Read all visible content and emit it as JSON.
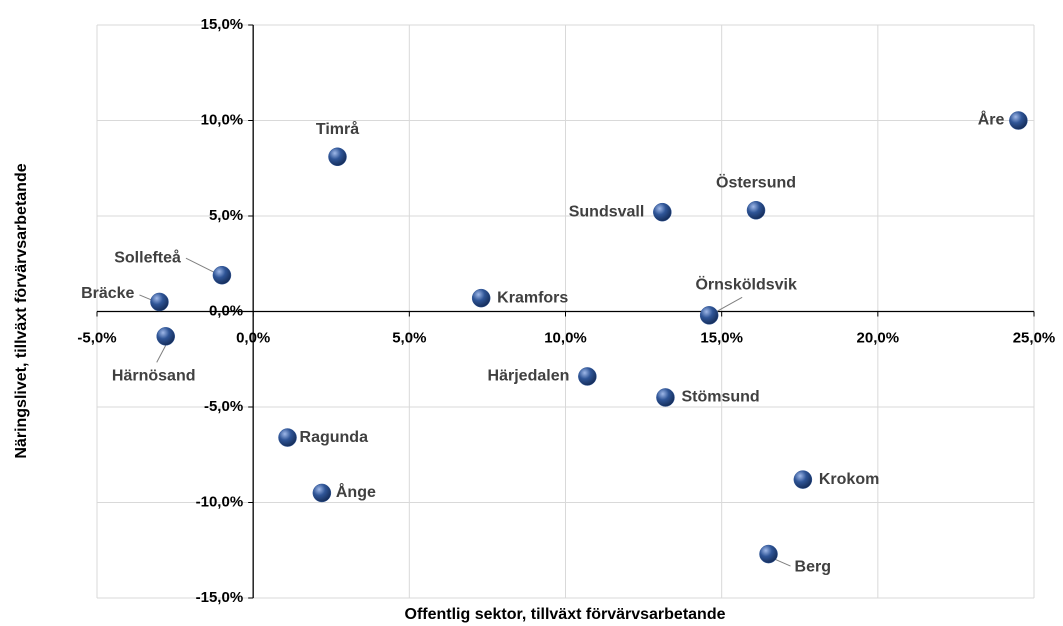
{
  "chart_data": {
    "type": "scatter",
    "x_label": "Offentlig sektor, tillväxt förvärvsarbetande",
    "y_label": "Näringslivet, tillväxt förvärvsarbetande",
    "labels": [
      "Åre",
      "Timrå",
      "Östersund",
      "Sundsvall",
      "Sollefteå",
      "Bräcke",
      "Kramfors",
      "Örnsköldsvik",
      "Härnösand",
      "Härjedalen",
      "Stömsund",
      "Ragunda",
      "Ånge",
      "Krokom",
      "Berg"
    ],
    "x": [
      24.5,
      2.7,
      16.1,
      13.1,
      -1.0,
      -3.0,
      7.3,
      14.6,
      -2.8,
      10.7,
      13.2,
      1.1,
      2.2,
      17.6,
      16.5
    ],
    "values": [
      10.0,
      8.1,
      5.3,
      5.2,
      1.9,
      0.5,
      0.7,
      -0.2,
      -1.3,
      -3.4,
      -4.5,
      -6.6,
      -9.5,
      -8.8,
      -12.7
    ],
    "color": "#2f5597",
    "xlim": [
      -5,
      25
    ],
    "ylim": [
      -15,
      15
    ],
    "xticks": [
      {
        "value": -5,
        "label": "-5,0%"
      },
      {
        "value": 0,
        "label": "0,0%"
      },
      {
        "value": 5,
        "label": "5,0%"
      },
      {
        "value": 10,
        "label": "10,0%"
      },
      {
        "value": 15,
        "label": "15,0%"
      },
      {
        "value": 20,
        "label": "20,0%"
      },
      {
        "value": 25,
        "label": "25,0%"
      }
    ],
    "yticks": [
      {
        "value": -15,
        "label": "-15,0%"
      },
      {
        "value": -10,
        "label": "-10,0%"
      },
      {
        "value": -5,
        "label": "-5,0%"
      },
      {
        "value": 0,
        "label": "0,0%"
      },
      {
        "value": 5,
        "label": "5,0%"
      },
      {
        "value": 10,
        "label": "10,0%"
      },
      {
        "value": 15,
        "label": "15,0%"
      }
    ],
    "grid": true
  }
}
